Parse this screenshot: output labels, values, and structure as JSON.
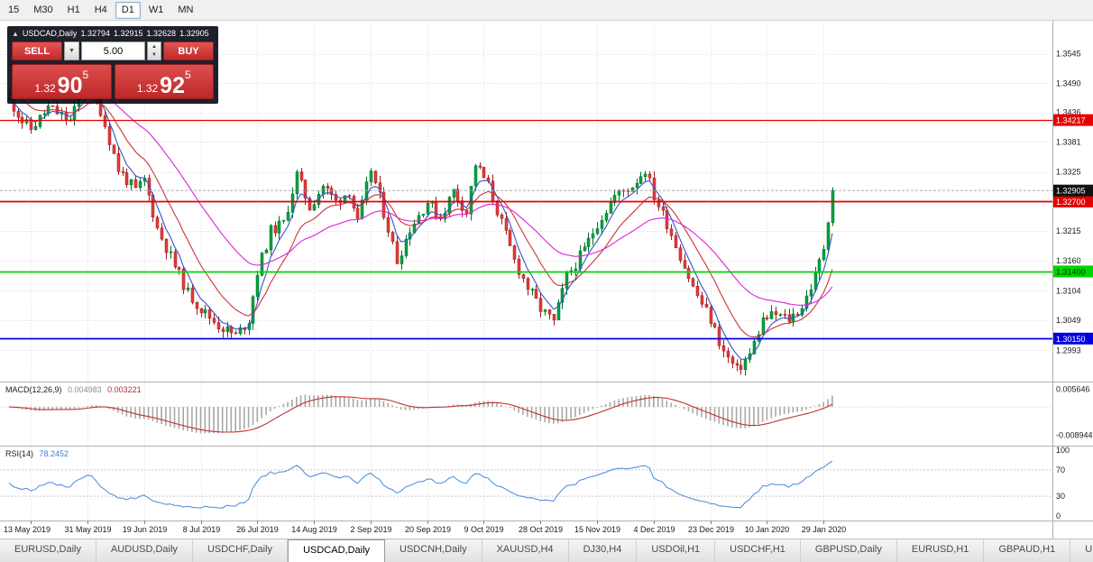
{
  "colors": {
    "up": "#00a33c",
    "upBorder": "#00702a",
    "down": "#e23b3b",
    "downBorder": "#9e1d1d",
    "maFast": "#3355cc",
    "maMid": "#cc3333",
    "maSlow": "#dd22dd",
    "macdHist": "#a8a8a8",
    "macdSignal": "#c03030",
    "rsi": "#4488dd",
    "grid": "#dcdcdc",
    "closeBadgeBg": "#111111",
    "bidLine": "#9aa4ae"
  },
  "toolbar": {
    "timeframes": [
      {
        "label": "15",
        "active": false
      },
      {
        "label": "M30",
        "active": false
      },
      {
        "label": "H1",
        "active": false
      },
      {
        "label": "H4",
        "active": false
      },
      {
        "label": "D1",
        "active": true
      },
      {
        "label": "W1",
        "active": false
      },
      {
        "label": "MN",
        "active": false
      }
    ]
  },
  "chart_header": {
    "collapse": "▲",
    "symbol": "USDCAD,Daily",
    "open": "1.32794",
    "high": "1.32915",
    "low": "1.32628",
    "close": "1.32905"
  },
  "trade_panel": {
    "sell_label": "SELL",
    "buy_label": "BUY",
    "lot": "5.00",
    "dropdown_icon": "▼",
    "up_icon": "▲",
    "down_icon": "▼",
    "sell_price": {
      "small": "1.32",
      "big": "90",
      "sup": "5"
    },
    "buy_price": {
      "small": "1.32",
      "big": "92",
      "sup": "5"
    }
  },
  "indicators": {
    "macd_name": "MACD(12,26,9)",
    "macd_main": "0.004983",
    "macd_signal": "0.003221",
    "rsi_name": "RSI(14)",
    "rsi_value": "78.2452"
  },
  "price_axis": {
    "labels": [
      "1.3545",
      "1.3490",
      "1.3436",
      "1.3381",
      "1.3325",
      "1.3270",
      "1.3215",
      "1.3160",
      "1.3104",
      "1.3049",
      "1.2993"
    ],
    "macd_top": "0.005646",
    "macd_bottom": "-0.008944",
    "rsi_labels": [
      "100",
      "70",
      "30",
      "0"
    ]
  },
  "hlines": [
    {
      "price": 1.34217,
      "label": "1.34217",
      "color": "#e60000",
      "width": 1.2,
      "text_color": "#ffffff"
    },
    {
      "price": 1.327,
      "label": "1.32700",
      "color": "#e60000",
      "width": 1.8,
      "text_color": "#ffffff"
    },
    {
      "price": 1.314,
      "label": "1.31400",
      "color": "#00d500",
      "width": 1.8,
      "text_color": "#003300"
    },
    {
      "price": 1.3015,
      "label": "1.30150",
      "color": "#0000e6",
      "width": 1.8,
      "text_color": "#ffffff"
    }
  ],
  "close_badge": {
    "price": 1.32905,
    "label": "1.32905"
  },
  "date_axis": [
    "13 May 2019",
    "31 May 2019",
    "19 Jun 2019",
    "8 Jul 2019",
    "26 Jul 2019",
    "14 Aug 2019",
    "2 Sep 2019",
    "20 Sep 2019",
    "9 Oct 2019",
    "28 Oct 2019",
    "15 Nov 2019",
    "4 Dec 2019",
    "23 Dec 2019",
    "10 Jan 2020",
    "29 Jan 2020"
  ],
  "tabs": {
    "active": "USDCAD,Daily",
    "items": [
      {
        "label": "EURUSD,Daily"
      },
      {
        "label": "AUDUSD,Daily"
      },
      {
        "label": "USDCHF,Daily"
      },
      {
        "label": "USDCAD,Daily"
      },
      {
        "label": "USDCNH,Daily"
      },
      {
        "label": "XAUUSD,H4"
      },
      {
        "label": "DJ30,H4"
      },
      {
        "label": "USDOil,H1"
      },
      {
        "label": "USDCHF,H1"
      },
      {
        "label": "GBPUSD,Daily"
      },
      {
        "label": "EURUSD,H1"
      },
      {
        "label": "GBPAUD,H1"
      },
      {
        "label": "USD"
      }
    ]
  },
  "chart_data": {
    "type": "candlestick",
    "symbol": "USDCAD",
    "timeframe": "Daily",
    "ohlc_current": {
      "open": 1.32794,
      "high": 1.32915,
      "low": 1.32628,
      "close": 1.32905
    },
    "price_range": [
      1.294,
      1.3578
    ],
    "date_tick_start": 5,
    "date_tick_step": 13,
    "candles": {
      "count": 190,
      "seed": 11,
      "noise": 0.0022,
      "wick": 0.0013,
      "anchors": [
        [
          0,
          1.346
        ],
        [
          3,
          1.342
        ],
        [
          5,
          1.3405
        ],
        [
          9,
          1.3445
        ],
        [
          14,
          1.342
        ],
        [
          18,
          1.3495
        ],
        [
          21,
          1.344
        ],
        [
          25,
          1.333
        ],
        [
          29,
          1.329
        ],
        [
          31,
          1.331
        ],
        [
          34,
          1.322
        ],
        [
          38,
          1.315
        ],
        [
          41,
          1.31
        ],
        [
          44,
          1.307
        ],
        [
          48,
          1.304
        ],
        [
          52,
          1.302
        ],
        [
          55,
          1.305
        ],
        [
          57,
          1.314
        ],
        [
          60,
          1.3215
        ],
        [
          63,
          1.323
        ],
        [
          66,
          1.332
        ],
        [
          69,
          1.326
        ],
        [
          72,
          1.33
        ],
        [
          75,
          1.327
        ],
        [
          78,
          1.329
        ],
        [
          80,
          1.323
        ],
        [
          83,
          1.333
        ],
        [
          86,
          1.325
        ],
        [
          89,
          1.316
        ],
        [
          92,
          1.322
        ],
        [
          96,
          1.327
        ],
        [
          99,
          1.324
        ],
        [
          102,
          1.329
        ],
        [
          105,
          1.325
        ],
        [
          107,
          1.334
        ],
        [
          110,
          1.33
        ],
        [
          113,
          1.323
        ],
        [
          116,
          1.316
        ],
        [
          119,
          1.311
        ],
        [
          122,
          1.307
        ],
        [
          125,
          1.3045
        ],
        [
          128,
          1.313
        ],
        [
          132,
          1.318
        ],
        [
          135,
          1.323
        ],
        [
          139,
          1.328
        ],
        [
          143,
          1.33
        ],
        [
          146,
          1.333
        ],
        [
          148,
          1.328
        ],
        [
          151,
          1.323
        ],
        [
          154,
          1.317
        ],
        [
          157,
          1.311
        ],
        [
          161,
          1.305
        ],
        [
          164,
          1.299
        ],
        [
          167,
          1.2955
        ],
        [
          170,
          1.2985
        ],
        [
          173,
          1.305
        ],
        [
          176,
          1.306
        ],
        [
          179,
          1.305
        ],
        [
          182,
          1.3075
        ],
        [
          185,
          1.313
        ],
        [
          187,
          1.3185
        ],
        [
          188,
          1.324
        ],
        [
          189,
          1.32905
        ]
      ]
    },
    "moving_averages": [
      {
        "period": 5,
        "color_key": "maFast",
        "seed_value": null
      },
      {
        "period": 13,
        "color_key": "maMid",
        "seed_value": 1.348
      },
      {
        "period": 34,
        "color_key": "maSlow",
        "seed_value": 1.353
      }
    ],
    "macd": {
      "fast": 12,
      "slow": 26,
      "signal": 9,
      "current": 0.004983,
      "signal_current": 0.003221,
      "scale_top": 0.0066,
      "scale_bottom": -0.0108
    },
    "rsi": {
      "period": 14,
      "current": 78.2452,
      "levels": [
        70,
        30
      ]
    }
  }
}
